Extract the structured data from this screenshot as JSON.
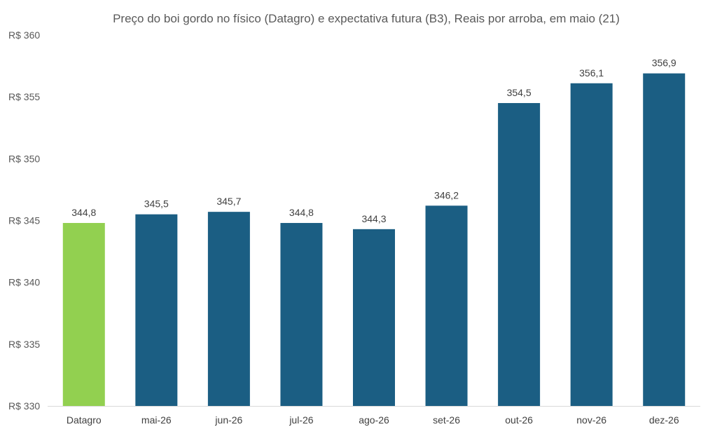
{
  "chart_data": {
    "type": "bar",
    "title": "Preço do boi gordo no físico (Datagro)  e expectativa futura (B3), Reais por arroba, em maio (21)",
    "categories": [
      "Datagro",
      "mai-26",
      "jun-26",
      "jul-26",
      "ago-26",
      "set-26",
      "out-26",
      "nov-26",
      "dez-26"
    ],
    "values": [
      344.8,
      345.5,
      345.7,
      344.8,
      344.3,
      346.2,
      354.5,
      356.1,
      356.9
    ],
    "data_labels": [
      "344,8",
      "345,5",
      "345,7",
      "344,8",
      "344,3",
      "346,2",
      "354,5",
      "356,1",
      "356,9"
    ],
    "bar_colors": [
      "#92d050",
      "#1b5e83",
      "#1b5e83",
      "#1b5e83",
      "#1b5e83",
      "#1b5e83",
      "#1b5e83",
      "#1b5e83",
      "#1b5e83"
    ],
    "ylim": [
      330,
      360
    ],
    "yticks": [
      330,
      335,
      340,
      345,
      350,
      355,
      360
    ],
    "ytick_labels": [
      "R$ 330",
      "R$ 335",
      "R$ 340",
      "R$ 345",
      "R$ 350",
      "R$ 355",
      "R$ 360"
    ],
    "xlabel": "",
    "ylabel": "",
    "grid": false,
    "legend": "none"
  }
}
